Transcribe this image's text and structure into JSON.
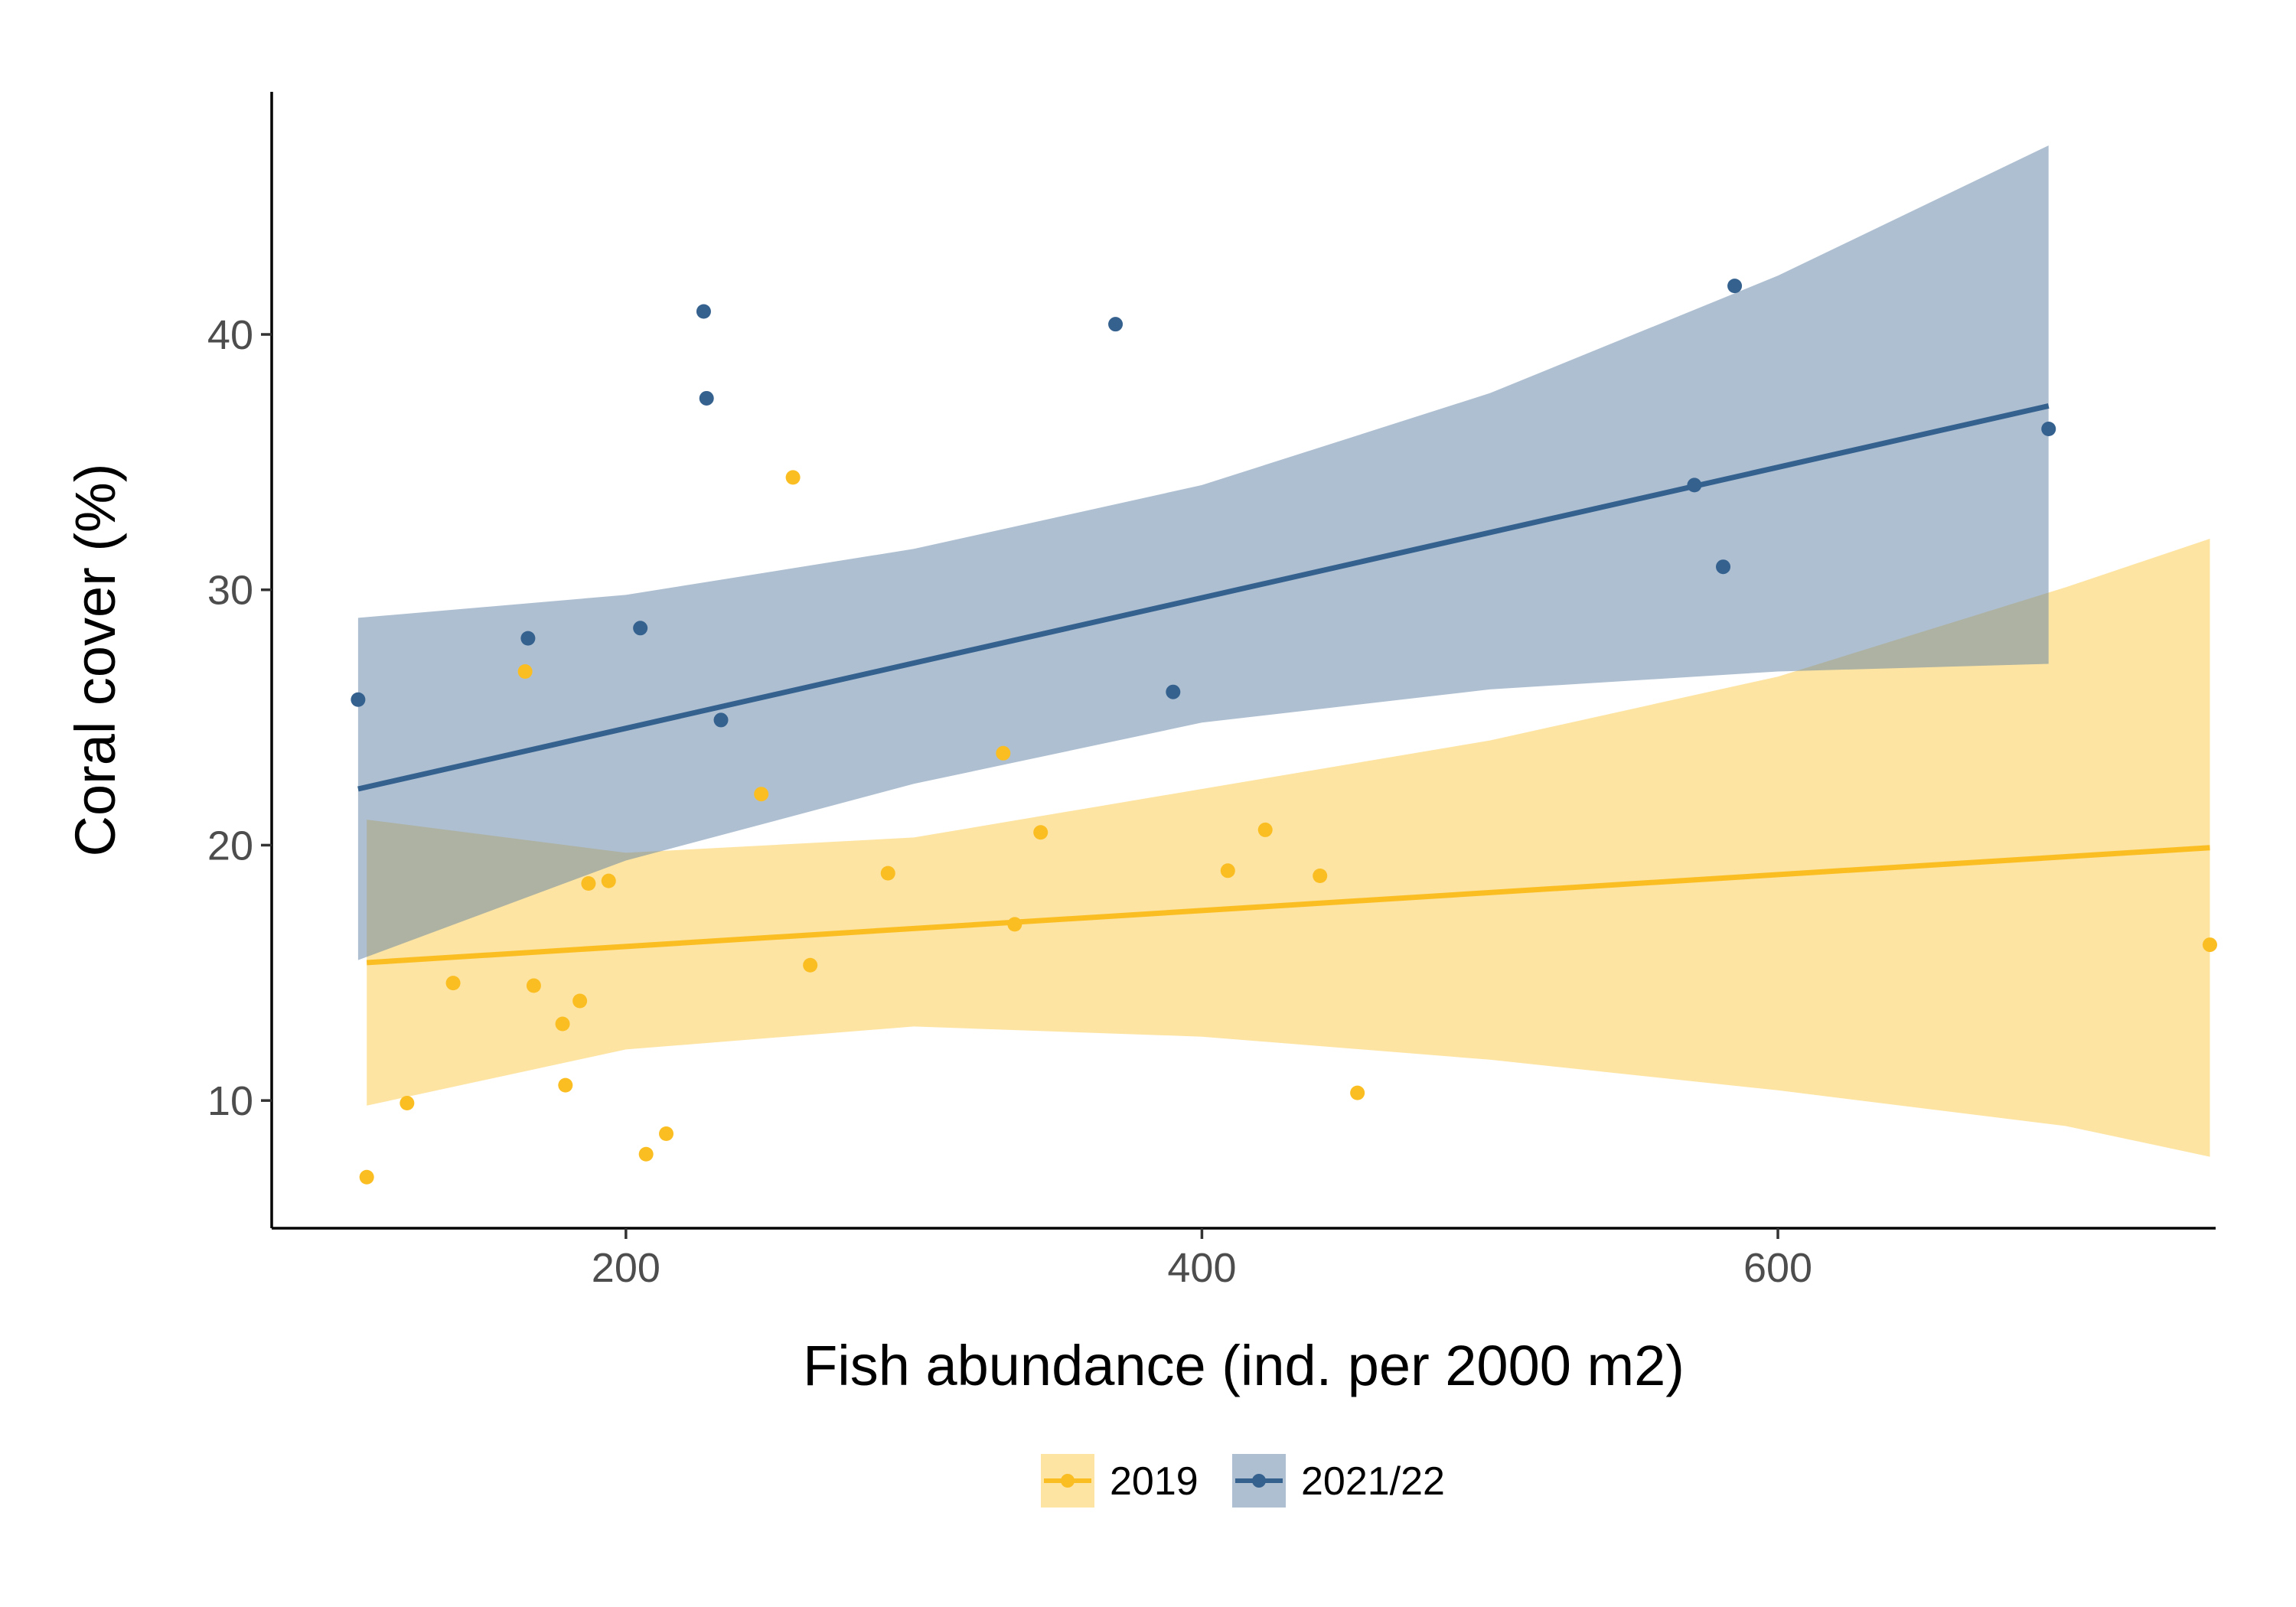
{
  "chart_data": {
    "type": "scatter",
    "xlabel": "Fish abundance (ind. per 2000 m2)",
    "ylabel": "Coral cover (%)",
    "xlim": [
      77,
      752
    ],
    "ylim": [
      5,
      49.5
    ],
    "x_ticks": [
      200,
      400,
      600
    ],
    "y_ticks": [
      10,
      20,
      30,
      40
    ],
    "grid": false,
    "legend_position": "bottom",
    "series": [
      {
        "name": "2019",
        "color": "#FBBE22",
        "band_color": "#FBBE22",
        "points": [
          {
            "x": 110,
            "y": 7.0
          },
          {
            "x": 124,
            "y": 9.9
          },
          {
            "x": 140,
            "y": 14.6
          },
          {
            "x": 165,
            "y": 26.8
          },
          {
            "x": 168,
            "y": 14.5
          },
          {
            "x": 178,
            "y": 13.0
          },
          {
            "x": 179,
            "y": 10.6
          },
          {
            "x": 184,
            "y": 13.9
          },
          {
            "x": 187,
            "y": 18.5
          },
          {
            "x": 194,
            "y": 18.6
          },
          {
            "x": 207,
            "y": 7.9
          },
          {
            "x": 214,
            "y": 8.7
          },
          {
            "x": 247,
            "y": 22.0
          },
          {
            "x": 258,
            "y": 34.4
          },
          {
            "x": 264,
            "y": 15.3
          },
          {
            "x": 291,
            "y": 18.9
          },
          {
            "x": 331,
            "y": 23.6
          },
          {
            "x": 335,
            "y": 16.9
          },
          {
            "x": 344,
            "y": 20.5
          },
          {
            "x": 409,
            "y": 19.0
          },
          {
            "x": 422,
            "y": 20.6
          },
          {
            "x": 441,
            "y": 18.8
          },
          {
            "x": 454,
            "y": 10.3
          },
          {
            "x": 750,
            "y": 16.1
          }
        ],
        "fit": {
          "x": [
            110,
            750
          ],
          "y": [
            15.4,
            19.9
          ]
        },
        "ci": {
          "x": [
            110,
            200,
            300,
            400,
            500,
            600,
            700,
            750
          ],
          "lower": [
            9.8,
            12.0,
            12.9,
            12.5,
            11.6,
            10.4,
            9.0,
            7.8
          ],
          "upper": [
            21.0,
            19.7,
            20.3,
            22.2,
            24.1,
            26.6,
            30.1,
            32.0
          ]
        }
      },
      {
        "name": "2021/22",
        "color": "#35618F",
        "band_color": "#5E7FA3",
        "points": [
          {
            "x": 107,
            "y": 25.7
          },
          {
            "x": 166,
            "y": 28.1
          },
          {
            "x": 205,
            "y": 28.5
          },
          {
            "x": 227,
            "y": 40.9
          },
          {
            "x": 228,
            "y": 37.5
          },
          {
            "x": 233,
            "y": 24.9
          },
          {
            "x": 370,
            "y": 40.4
          },
          {
            "x": 390,
            "y": 26.0
          },
          {
            "x": 571,
            "y": 34.1
          },
          {
            "x": 581,
            "y": 30.9
          },
          {
            "x": 585,
            "y": 41.9
          },
          {
            "x": 694,
            "y": 36.3
          }
        ],
        "fit": {
          "x": [
            107,
            694
          ],
          "y": [
            22.2,
            37.2
          ]
        },
        "ci": {
          "x": [
            107,
            200,
            300,
            400,
            500,
            600,
            694
          ],
          "lower": [
            15.5,
            19.4,
            22.4,
            24.8,
            26.1,
            26.8,
            27.1
          ],
          "upper": [
            28.9,
            29.8,
            31.6,
            34.1,
            37.7,
            42.3,
            47.4
          ]
        }
      }
    ]
  }
}
